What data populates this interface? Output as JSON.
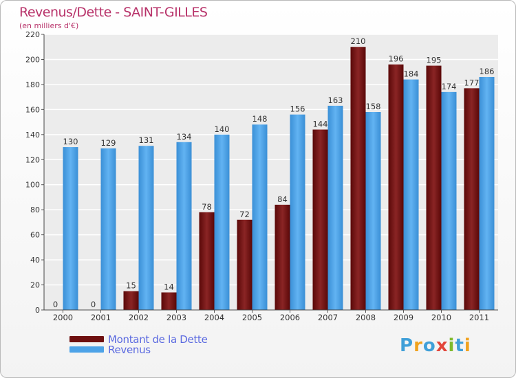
{
  "title": "Revenus/Dette - SAINT-GILLES",
  "subtitle": "(en milliers d'€)",
  "logo": {
    "text": "Proxiti",
    "colors": [
      "#3f9fd8",
      "#f0a21e",
      "#3f9fd8",
      "#e2453a",
      "#7fba2c",
      "#3f9fd8",
      "#f0a21e"
    ]
  },
  "colors": {
    "dette": "#6e1010",
    "revenus": "#4da3e8",
    "title": "#b8336a",
    "legend_text": "#5a69e0"
  },
  "chart_data": {
    "type": "bar",
    "title": "Revenus/Dette - SAINT-GILLES",
    "subtitle": "(en milliers d'€)",
    "categories": [
      "2000",
      "2001",
      "2002",
      "2003",
      "2004",
      "2005",
      "2006",
      "2007",
      "2008",
      "2009",
      "2010",
      "2011"
    ],
    "series": [
      {
        "name": "Montant de la Dette",
        "color": "#6e1010",
        "values": [
          0,
          0,
          15,
          14,
          78,
          72,
          84,
          144,
          210,
          196,
          195,
          177
        ]
      },
      {
        "name": "Revenus",
        "color": "#4da3e8",
        "values": [
          130,
          129,
          131,
          134,
          140,
          148,
          156,
          163,
          158,
          184,
          174,
          186
        ]
      }
    ],
    "yticks": [
      "0",
      "20",
      "40",
      "60",
      "80",
      "100",
      "120",
      "140",
      "160",
      "180",
      "200",
      "220"
    ],
    "ylim": [
      0,
      220
    ],
    "grid": true,
    "legend": "bottom-left"
  }
}
